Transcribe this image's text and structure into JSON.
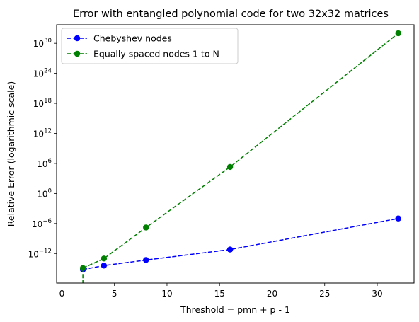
{
  "chart_data": {
    "type": "line",
    "title": "Error with entangled polynomial code for two 32x32 matrices",
    "xlabel": "Threshold = pmn + p - 1",
    "ylabel": "Relative Error (logarithmic scale)",
    "yscale": "log",
    "xlim": [
      -0.5,
      33.5
    ],
    "ylim_log10": [
      -17.9,
      33.7
    ],
    "x_ticks": [
      0,
      5,
      10,
      15,
      20,
      25,
      30
    ],
    "x_tick_labels": [
      "0",
      "5",
      "10",
      "15",
      "20",
      "25",
      "30"
    ],
    "y_ticks": [
      {
        "base": "10",
        "exp": "30",
        "value_log10": 30
      },
      {
        "base": "10",
        "exp": "24",
        "value_log10": 24
      },
      {
        "base": "10",
        "exp": "18",
        "value_log10": 18
      },
      {
        "base": "10",
        "exp": "12",
        "value_log10": 12
      },
      {
        "base": "10",
        "exp": "6",
        "value_log10": 6
      },
      {
        "base": "10",
        "exp": "0",
        "value_log10": 0
      },
      {
        "base": "10",
        "exp": "−6",
        "value_log10": -6
      },
      {
        "base": "10",
        "exp": "−12",
        "value_log10": -12
      }
    ],
    "grid": false,
    "legend_position": "top-left",
    "series": [
      {
        "name": "Chebyshev nodes",
        "color": "#0000ff",
        "style": "dashed-circle-markers",
        "x": [
          2,
          4,
          8,
          16,
          32
        ],
        "y_log10": [
          -15.2,
          -14.4,
          -13.3,
          -11.2,
          -5.0
        ]
      },
      {
        "name": "Equally spaced nodes 1 to N",
        "color": "#008000",
        "style": "dashed-circle-markers",
        "x": [
          2,
          4,
          8,
          16,
          32
        ],
        "y_log10": [
          -14.9,
          -13.0,
          -6.8,
          5.3,
          32.0
        ],
        "extra_segment_note": "line drops off the bottom of the axes near x=2 (value too small for log scale)"
      }
    ]
  }
}
